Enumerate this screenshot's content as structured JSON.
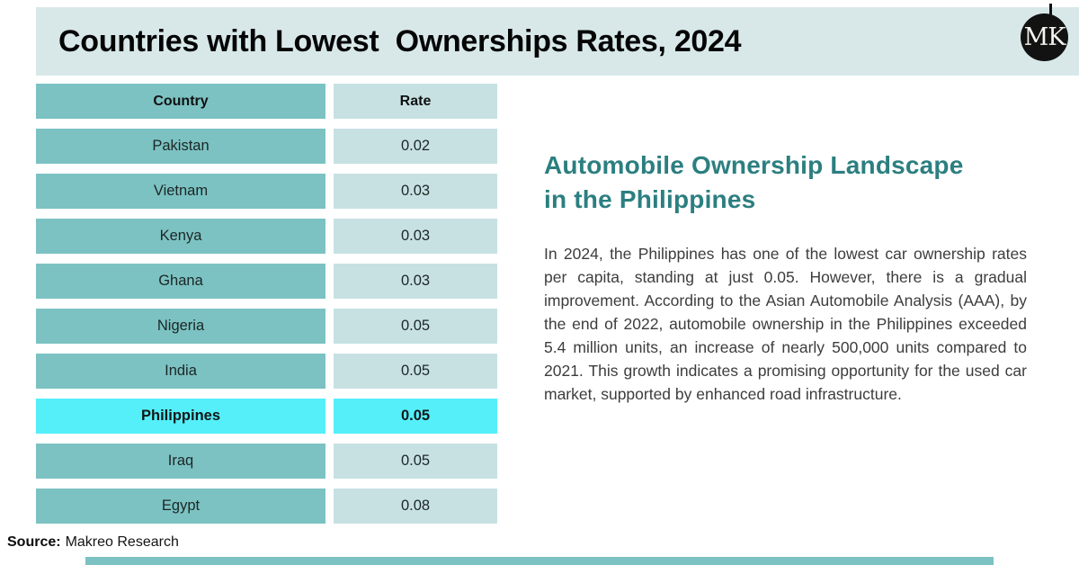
{
  "header": {
    "title": "Countries with Lowest  Ownerships Rates, 2024",
    "logo_monogram": "MK"
  },
  "table": {
    "columns": [
      "Country",
      "Rate"
    ],
    "rows": [
      {
        "country": "Pakistan",
        "rate": "0.02",
        "highlight": false
      },
      {
        "country": "Vietnam",
        "rate": "0.03",
        "highlight": false
      },
      {
        "country": "Kenya",
        "rate": "0.03",
        "highlight": false
      },
      {
        "country": "Ghana",
        "rate": "0.03",
        "highlight": false
      },
      {
        "country": "Nigeria",
        "rate": "0.05",
        "highlight": false
      },
      {
        "country": "India",
        "rate": "0.05",
        "highlight": false
      },
      {
        "country": "Philippines",
        "rate": "0.05",
        "highlight": true
      },
      {
        "country": "Iraq",
        "rate": "0.05",
        "highlight": false
      },
      {
        "country": "Egypt",
        "rate": "0.08",
        "highlight": false
      }
    ]
  },
  "article": {
    "heading": "Automobile Ownership Landscape in the Philippines",
    "heading_lines": [
      "Automobile Ownership Landscape",
      "in the Philippines"
    ],
    "body": "In 2024, the Philippines has one of the lowest car ownership rates per capita, standing at just 0.05. However, there is a gradual improvement. According to the Asian Automobile Analysis (AAA), by the end of 2022, automobile ownership in the Philippines exceeded 5.4 million units, an increase of nearly 500,000 units compared to 2021. This growth indicates a promising opportunity for the used car market, supported by enhanced road infrastructure."
  },
  "footer": {
    "source_label": "Source:",
    "source_text": "Makreo Research"
  },
  "colors": {
    "header_band": "#d8e8e9",
    "cell_teal": "#7cc2c2",
    "cell_light": "#c7e1e3",
    "highlight_cyan": "#55effa",
    "heading_teal": "#2c7f80",
    "logo_bg": "#121212",
    "body_gray": "#3d3d3d",
    "bottom_bar": "#7cc2c2"
  },
  "chart_data": {
    "type": "table",
    "title": "Countries with Lowest Ownerships Rates, 2024",
    "columns": [
      "Country",
      "Rate"
    ],
    "rows": [
      [
        "Pakistan",
        0.02
      ],
      [
        "Vietnam",
        0.03
      ],
      [
        "Kenya",
        0.03
      ],
      [
        "Ghana",
        0.03
      ],
      [
        "Nigeria",
        0.05
      ],
      [
        "India",
        0.05
      ],
      [
        "Philippines",
        0.05
      ],
      [
        "Iraq",
        0.05
      ],
      [
        "Egypt",
        0.08
      ]
    ],
    "highlighted_row": "Philippines",
    "source": "Makreo Research"
  }
}
